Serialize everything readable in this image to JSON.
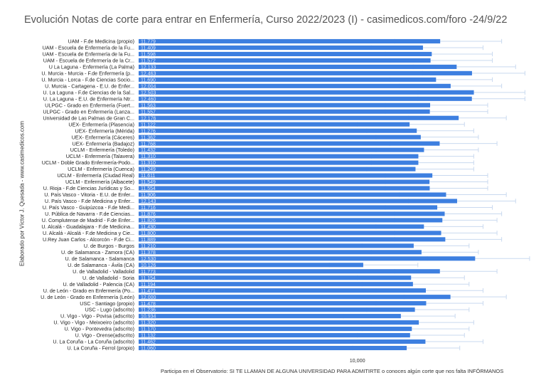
{
  "chart_data": {
    "type": "bar",
    "orientation": "horizontal",
    "title": "Evolución Notas de corte para entrar en Enfermería, Curso 2022/2023 (I) - casimedicos.com/foro -24/9/22",
    "ylabel": "Elaborado por Víctor J. Quesada  -  www.casimedicos.com",
    "xlabel": "",
    "footnote": "Participa en el Observatorio: SI TE LLAMAN DE ALGUNA UNIVERSIDAD PARA ADMITIRTE o conoces algún corte que nos falta INFÓRMANOS",
    "x_ticks": [
      {
        "value": 10,
        "label": "10,000"
      }
    ],
    "xlim": [
      5.3,
      13.9
    ],
    "grid": false,
    "legend": "none",
    "bar_color": "#3d7fe0",
    "whisker_color": "#c9d9ef",
    "label_color": "#e8eef8",
    "categories": [
      "UAM - F.de Medicina (propio)",
      "UAM - Escuela de Enfermería de la Fu...",
      "UAM - Escuela de Enfermería de la Fu...",
      "UAM - Escuela de Enfermería de la Cr...",
      "U La Laguna - Enfermería (La Palma)",
      "U. Murcia - Murcia - F.de Enfermería (p...",
      "U. Murcia - Lorca - F.de Ciencias Socio...",
      "U. Murcia - Cartagena - E.U. de Enfer...",
      "U. La Laguna - F.de Ciencias de la Sal...",
      "U. La Laguna - E.U. de Enfermería Ntr...",
      "ULPGC -  Grado en Enfermería (Fuert...",
      "ULPGC -  Grado en Enfermería (Lanza...",
      "Universidad de Las Palmas de Gran C...",
      "UEX- Enfermería (Plasencia)",
      "UEX- Enfermería (Mérida)",
      "UEX- Enfermería (Cáceres)",
      "UEX- Enfermería (Badajoz)",
      "UCLM - Enfermería (Toledo)",
      "UCLM - Enfermería (Talavera)",
      "UCLM - Doble Grado Enfermería-Podo...",
      "UCLM - Enfermería (Cuenca)",
      "UCLM - Enfermería (Ciudad Real)",
      "UCLM - Enfermería (Albacete)",
      "U. Rioja - F.de Ciencias Jurídicas y So...",
      "U. País Vasco - Vitoria - E.U. de Enfer...",
      "U. País Vasco - F.de Medicina y Enfer...",
      "U. País Vasco - Guipúzcoa - F.de Medi...",
      "U. Pública de Navarra - F.de Ciencias...",
      "U. Complutense de Madrid - F.de Enfer...",
      "U. Alcalá - Guadalajara - F.de Medicina...",
      "U. Alcalá - Alcalá - F.de Medicina y Cie...",
      "U.Rey Juan Carlos - Alcorcón - F.de Ci...",
      "U. de Burgos - Burgos",
      "U. de Salamanca - Zamora (CA)",
      "U. de Salamanca - Salamanca",
      "U. de Salamanca - Ávila (CA)",
      "U. de Valladolid - Valladolid",
      "U. de Valladolid - Soria",
      "U. de Valladolid - Palencia (CA)",
      "U. de León - Grado en Enfermería (Po...",
      "U. de León - Grado en Enfermería (León)",
      "USC - Santiago  (propio)",
      "USC - Lugo  (adscrito)",
      "U. Vigo - Vigo - Povisa (adscrito)",
      "U. Vigo - Vigo - Meixoeiro (adscrito)",
      "U. Vigo - Pontevedra (adscrito)",
      "U. Vigo - Orense(adscrito)",
      "U. La Coruña - La Coruña (adscrito)",
      "U. La Coruña - Ferrol  (propio)"
    ],
    "value_labels": [
      "11,779",
      "11,409",
      "11,598",
      "11,572",
      "12,133",
      "12,463",
      "11,690",
      "12,004",
      "12,503",
      "12,460",
      "11,563",
      "11,557",
      "12,176",
      "11,122",
      "11,276",
      "11,362",
      "11,768",
      "11,432",
      "11,310",
      "11,310",
      "11,249",
      "11,611",
      "11,549",
      "11,554",
      "11,906",
      "12,143",
      "11,716",
      "11,876",
      "11,826",
      "11,430",
      "11,800",
      "11,889",
      "11,210",
      "11,378",
      "12,530",
      "10,126",
      "11,773",
      "11,154",
      "11,194",
      "11,471",
      "12,000",
      "11,478",
      "11,236",
      "10,934",
      "11,320",
      "11,170",
      "11,132",
      "11,462",
      "11,060"
    ],
    "values": [
      11.779,
      11.409,
      11.598,
      11.572,
      12.133,
      12.463,
      11.69,
      12.004,
      12.503,
      12.46,
      11.563,
      11.557,
      12.176,
      11.122,
      11.276,
      11.362,
      11.768,
      11.432,
      11.31,
      11.31,
      11.249,
      11.611,
      11.549,
      11.554,
      11.906,
      12.143,
      11.716,
      11.876,
      11.826,
      11.43,
      11.8,
      11.889,
      11.21,
      11.378,
      12.53,
      10.126,
      11.773,
      11.154,
      11.194,
      11.471,
      12.0,
      11.478,
      11.236,
      10.934,
      11.32,
      11.17,
      11.132,
      11.462,
      11.06
    ],
    "ranges": [
      [
        10.8,
        13.1
      ],
      [
        10.3,
        12.7
      ],
      [
        10.6,
        12.9
      ],
      [
        10.7,
        12.9
      ],
      [
        11.2,
        13.4
      ],
      [
        11.4,
        13.6
      ],
      [
        10.7,
        12.9
      ],
      [
        10.9,
        13.1
      ],
      [
        11.3,
        13.6
      ],
      [
        11.3,
        13.6
      ],
      [
        10.6,
        12.8
      ],
      [
        10.6,
        12.8
      ],
      [
        11.1,
        13.2
      ],
      [
        10.0,
        12.3
      ],
      [
        10.2,
        12.5
      ],
      [
        10.4,
        12.6
      ],
      [
        10.7,
        13.0
      ],
      [
        10.4,
        12.6
      ],
      [
        10.3,
        12.5
      ],
      [
        10.3,
        12.5
      ],
      [
        10.2,
        12.5
      ],
      [
        10.6,
        12.8
      ],
      [
        10.6,
        12.8
      ],
      [
        10.6,
        12.8
      ],
      [
        10.9,
        13.2
      ],
      [
        11.1,
        13.4
      ],
      [
        10.6,
        12.9
      ],
      [
        10.8,
        13.1
      ],
      [
        10.8,
        13.0
      ],
      [
        10.4,
        12.7
      ],
      [
        10.8,
        13.0
      ],
      [
        10.8,
        13.1
      ],
      [
        10.1,
        12.4
      ],
      [
        10.3,
        12.6
      ],
      [
        11.5,
        13.7
      ],
      [
        9.4,
        11.3
      ],
      [
        10.8,
        13.0
      ],
      [
        10.0,
        12.3
      ],
      [
        10.1,
        12.4
      ],
      [
        10.4,
        12.7
      ],
      [
        11.0,
        13.2
      ],
      [
        10.4,
        12.7
      ],
      [
        10.2,
        12.4
      ],
      [
        9.7,
        12.1
      ],
      [
        10.3,
        12.5
      ],
      [
        10.1,
        12.4
      ],
      [
        10.0,
        12.3
      ],
      [
        10.4,
        12.7
      ],
      [
        9.9,
        12.2
      ]
    ]
  }
}
